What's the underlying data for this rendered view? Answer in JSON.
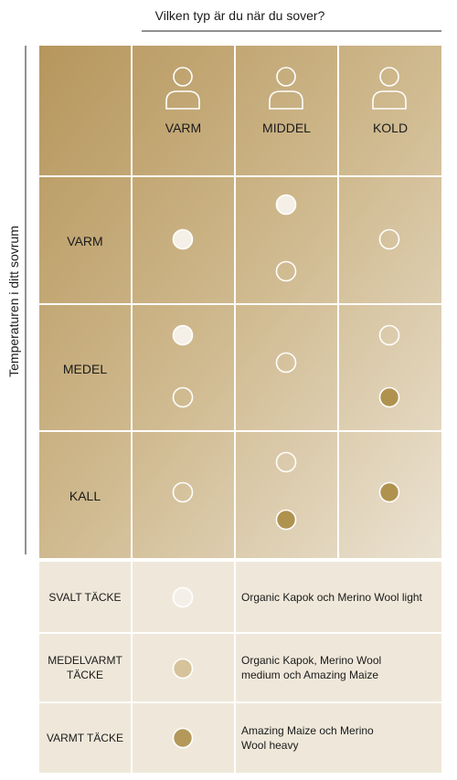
{
  "title": "Vilken typ är du när du sover?",
  "y_axis_label": "Temperaturen i ditt sovrum",
  "columns": [
    "VARM",
    "MIDDEL",
    "KOLD"
  ],
  "rows": [
    "VARM",
    "MEDEL",
    "KALL"
  ],
  "legend": [
    {
      "label": "SVALT TÄCKE",
      "description": "Organic Kapok och Merino Wool light"
    },
    {
      "label": "MEDELVARMT TÄCKE",
      "description": "Organic Kapok, Merino Wool medium och Amazing Maize"
    },
    {
      "label": "VARMT TÄCKE",
      "description": "Amazing Maize och Merino Wool heavy"
    }
  ]
}
